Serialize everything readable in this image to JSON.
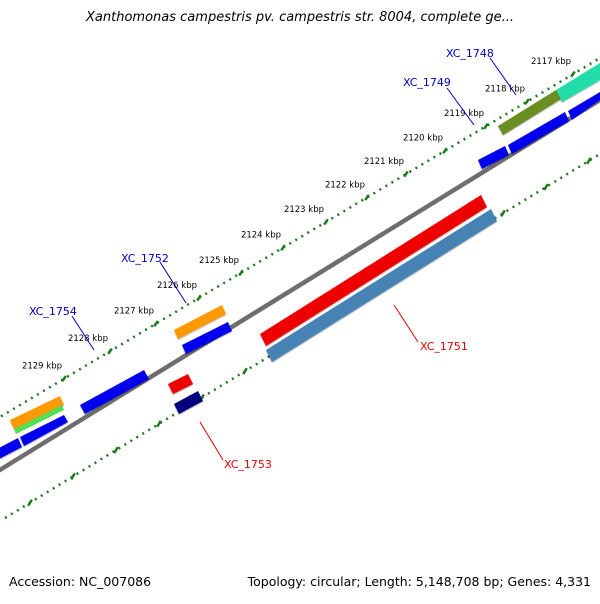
{
  "title": "Xanthomonas campestris pv. campestris str. 8004, complete ge...",
  "footer": {
    "accession": "Accession: NC_007086",
    "summary": "Topology: circular; Length: 5,148,708 bp; Genes: 4,331"
  },
  "ticks": [
    "2117 kbp",
    "2118 kbp",
    "2119 kbp",
    "2120 kbp",
    "2121 kbp",
    "2122 kbp",
    "2123 kbp",
    "2124 kbp",
    "2125 kbp",
    "2126 kbp",
    "2127 kbp",
    "2128 kbp",
    "2129 kbp"
  ],
  "gene_labels": [
    {
      "text": "XC_1748",
      "color": "#0000c0"
    },
    {
      "text": "XC_1749",
      "color": "#0000c0"
    },
    {
      "text": "XC_1752",
      "color": "#0000c0"
    },
    {
      "text": "XC_1754",
      "color": "#0000c0"
    },
    {
      "text": "XC_1751",
      "color": "#e00000"
    },
    {
      "text": "XC_1753",
      "color": "#e00000"
    }
  ],
  "colors": {
    "backbone": "#808080",
    "tick": "#1f7a1f",
    "forward_cds": "#0000ee",
    "selected_red": "#ee0000",
    "steel_blue": "#4682b4",
    "navy": "#000080",
    "orange": "#ff9900",
    "olive": "#6b8e23",
    "aquamarine": "#22ddaa",
    "light_green": "#55dd55"
  }
}
